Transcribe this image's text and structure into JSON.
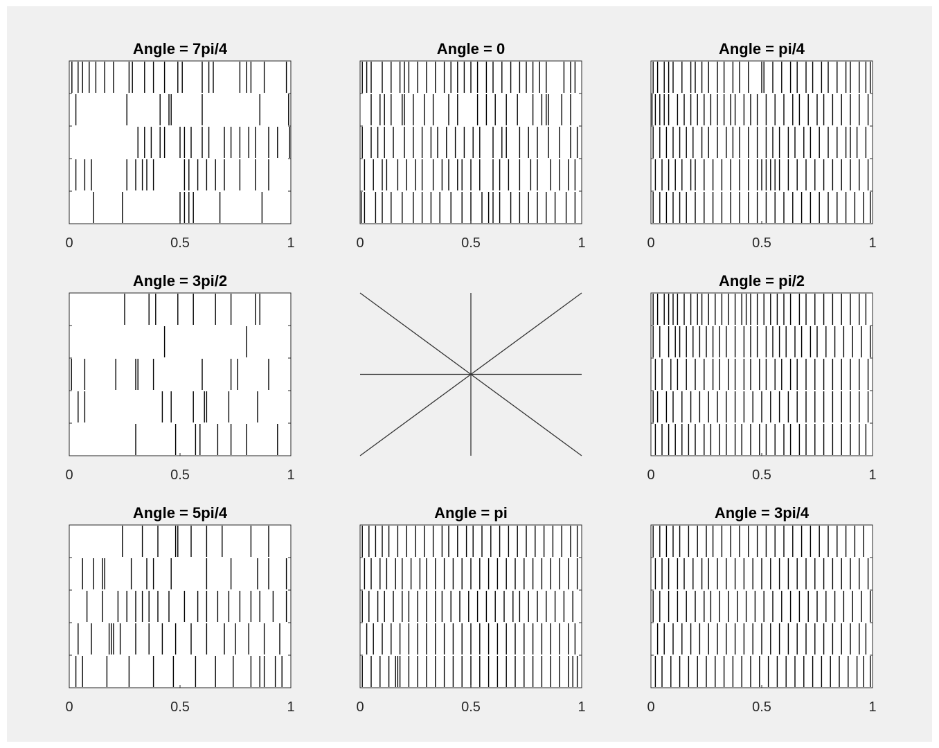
{
  "figure": {
    "background": "#f0f0f0",
    "axes_background": "#ffffff",
    "spike_color": "#000000"
  },
  "chart_data": [
    {
      "type": "raster",
      "title": "Angle = 7pi/4",
      "xlim": [
        0,
        1
      ],
      "xticks": [
        "0",
        "0.5",
        "1"
      ],
      "trials": [
        [
          0.012,
          0.04,
          0.06,
          0.09,
          0.12,
          0.16,
          0.2,
          0.27,
          0.285,
          0.34,
          0.38,
          0.43,
          0.49,
          0.51,
          0.6,
          0.63,
          0.65,
          0.77,
          0.8,
          0.82,
          0.88,
          0.98
        ],
        [
          0.03,
          0.26,
          0.41,
          0.45,
          0.46,
          0.6,
          0.86,
          0.99
        ],
        [
          0.31,
          0.34,
          0.37,
          0.41,
          0.43,
          0.5,
          0.52,
          0.55,
          0.6,
          0.63,
          0.7,
          0.73,
          0.77,
          0.81,
          0.84,
          0.9,
          0.94,
          0.995
        ],
        [
          0.03,
          0.07,
          0.1,
          0.26,
          0.3,
          0.33,
          0.35,
          0.38,
          0.52,
          0.54,
          0.58,
          0.62,
          0.66,
          0.7,
          0.77,
          0.84,
          0.9
        ],
        [
          0.11,
          0.24,
          0.5,
          0.52,
          0.54,
          0.56,
          0.68,
          0.87
        ]
      ]
    },
    {
      "type": "raster",
      "title": "Angle = 0",
      "xlim": [
        0,
        1
      ],
      "xticks": [
        "0",
        "0.5",
        "1"
      ],
      "trials": [
        [
          0.01,
          0.03,
          0.05,
          0.1,
          0.14,
          0.18,
          0.2,
          0.22,
          0.26,
          0.3,
          0.34,
          0.38,
          0.41,
          0.44,
          0.47,
          0.5,
          0.53,
          0.57,
          0.6,
          0.64,
          0.68,
          0.72,
          0.75,
          0.78,
          0.81,
          0.84,
          0.92,
          0.95,
          0.97
        ],
        [
          0.05,
          0.09,
          0.11,
          0.14,
          0.19,
          0.2,
          0.24,
          0.29,
          0.33,
          0.4,
          0.44,
          0.53,
          0.57,
          0.61,
          0.66,
          0.71,
          0.78,
          0.82,
          0.84,
          0.85,
          0.91,
          0.95
        ],
        [
          0.01,
          0.05,
          0.08,
          0.11,
          0.15,
          0.2,
          0.24,
          0.28,
          0.32,
          0.35,
          0.39,
          0.43,
          0.47,
          0.51,
          0.54,
          0.6,
          0.64,
          0.66,
          0.72,
          0.76,
          0.8,
          0.85,
          0.9,
          0.95,
          0.98
        ],
        [
          0.02,
          0.06,
          0.1,
          0.12,
          0.17,
          0.21,
          0.25,
          0.28,
          0.33,
          0.37,
          0.4,
          0.44,
          0.46,
          0.5,
          0.54,
          0.6,
          0.63,
          0.67,
          0.72,
          0.77,
          0.8,
          0.86,
          0.9,
          0.94,
          0.97
        ],
        [
          0.005,
          0.02,
          0.07,
          0.1,
          0.14,
          0.19,
          0.24,
          0.28,
          0.32,
          0.36,
          0.41,
          0.46,
          0.5,
          0.55,
          0.58,
          0.6,
          0.63,
          0.68,
          0.72,
          0.76,
          0.8,
          0.84,
          0.88,
          0.93,
          0.97
        ]
      ]
    },
    {
      "type": "raster",
      "title": "Angle = pi/4",
      "xlim": [
        0,
        1
      ],
      "xticks": [
        "0",
        "0.5",
        "1"
      ],
      "trials": [
        [
          0.01,
          0.03,
          0.06,
          0.08,
          0.1,
          0.14,
          0.18,
          0.2,
          0.23,
          0.26,
          0.3,
          0.33,
          0.37,
          0.4,
          0.44,
          0.5,
          0.51,
          0.55,
          0.59,
          0.63,
          0.66,
          0.7,
          0.73,
          0.77,
          0.8,
          0.84,
          0.88,
          0.9,
          0.94,
          0.97,
          0.99
        ],
        [
          0.005,
          0.02,
          0.04,
          0.06,
          0.08,
          0.12,
          0.15,
          0.18,
          0.21,
          0.24,
          0.27,
          0.3,
          0.33,
          0.36,
          0.38,
          0.42,
          0.45,
          0.48,
          0.52,
          0.56,
          0.6,
          0.64,
          0.67,
          0.71,
          0.75,
          0.78,
          0.82,
          0.86,
          0.9,
          0.94,
          0.98
        ],
        [
          0.01,
          0.04,
          0.07,
          0.1,
          0.13,
          0.16,
          0.19,
          0.23,
          0.26,
          0.3,
          0.34,
          0.37,
          0.4,
          0.44,
          0.48,
          0.52,
          0.55,
          0.58,
          0.62,
          0.65,
          0.69,
          0.72,
          0.76,
          0.8,
          0.84,
          0.88,
          0.9,
          0.93,
          0.97
        ],
        [
          0.02,
          0.05,
          0.08,
          0.11,
          0.14,
          0.18,
          0.2,
          0.24,
          0.28,
          0.32,
          0.36,
          0.4,
          0.44,
          0.48,
          0.5,
          0.52,
          0.54,
          0.56,
          0.58,
          0.62,
          0.66,
          0.7,
          0.74,
          0.78,
          0.82,
          0.86,
          0.9,
          0.94,
          0.98
        ],
        [
          0.01,
          0.04,
          0.07,
          0.1,
          0.13,
          0.16,
          0.2,
          0.24,
          0.28,
          0.32,
          0.36,
          0.4,
          0.44,
          0.48,
          0.52,
          0.56,
          0.6,
          0.64,
          0.68,
          0.72,
          0.76,
          0.8,
          0.84,
          0.88,
          0.92,
          0.96,
          0.99
        ]
      ]
    },
    {
      "type": "raster",
      "title": "Angle = 3pi/2",
      "xlim": [
        0,
        1
      ],
      "xticks": [
        "0",
        "0.5",
        "1"
      ],
      "trials": [
        [
          0.25,
          0.36,
          0.39,
          0.49,
          0.56,
          0.66,
          0.73,
          0.84,
          0.86
        ],
        [
          0.43,
          0.8
        ],
        [
          0.01,
          0.07,
          0.21,
          0.3,
          0.31,
          0.38,
          0.6,
          0.73,
          0.76,
          0.9
        ],
        [
          0.04,
          0.07,
          0.42,
          0.46,
          0.56,
          0.61,
          0.62,
          0.72,
          0.85
        ],
        [
          0.3,
          0.48,
          0.57,
          0.59,
          0.67,
          0.73,
          0.8,
          0.94
        ]
      ]
    },
    {
      "type": "lines",
      "title": "",
      "xlim": [
        -1,
        1
      ],
      "ylim": [
        -1,
        1
      ],
      "lines": [
        [
          -1,
          0,
          1,
          0
        ],
        [
          0,
          -1,
          0,
          1
        ],
        [
          -1,
          -1,
          1,
          1
        ],
        [
          -1,
          1,
          1,
          -1
        ]
      ]
    },
    {
      "type": "raster",
      "title": "Angle = pi/2",
      "xlim": [
        0,
        1
      ],
      "xticks": [
        "0",
        "0.5",
        "1"
      ],
      "trials": [
        [
          0.01,
          0.03,
          0.06,
          0.08,
          0.1,
          0.12,
          0.15,
          0.18,
          0.21,
          0.23,
          0.26,
          0.29,
          0.32,
          0.35,
          0.38,
          0.41,
          0.43,
          0.45,
          0.48,
          0.51,
          0.54,
          0.57,
          0.6,
          0.63,
          0.67,
          0.7,
          0.74,
          0.78,
          0.82,
          0.86,
          0.9,
          0.94,
          0.97
        ],
        [
          0.01,
          0.04,
          0.08,
          0.11,
          0.13,
          0.16,
          0.19,
          0.22,
          0.25,
          0.28,
          0.31,
          0.34,
          0.38,
          0.42,
          0.45,
          0.48,
          0.52,
          0.55,
          0.58,
          0.61,
          0.65,
          0.68,
          0.72,
          0.75,
          0.79,
          0.83,
          0.87,
          0.91,
          0.95,
          0.99
        ],
        [
          0.02,
          0.05,
          0.09,
          0.12,
          0.16,
          0.2,
          0.24,
          0.28,
          0.31,
          0.35,
          0.38,
          0.42,
          0.45,
          0.49,
          0.52,
          0.56,
          0.59,
          0.63,
          0.66,
          0.7,
          0.74,
          0.78,
          0.82,
          0.86,
          0.9,
          0.94,
          0.98
        ],
        [
          0.01,
          0.03,
          0.07,
          0.1,
          0.14,
          0.18,
          0.22,
          0.26,
          0.3,
          0.34,
          0.38,
          0.42,
          0.46,
          0.5,
          0.54,
          0.58,
          0.62,
          0.66,
          0.7,
          0.74,
          0.78,
          0.82,
          0.86,
          0.9,
          0.94,
          0.98
        ],
        [
          0.02,
          0.05,
          0.08,
          0.11,
          0.14,
          0.17,
          0.2,
          0.24,
          0.27,
          0.31,
          0.34,
          0.38,
          0.41,
          0.45,
          0.49,
          0.52,
          0.56,
          0.6,
          0.63,
          0.67,
          0.7,
          0.74,
          0.78,
          0.82,
          0.86,
          0.9,
          0.94,
          0.97
        ]
      ]
    },
    {
      "type": "raster",
      "title": "Angle = 5pi/4",
      "xlim": [
        0,
        1
      ],
      "xticks": [
        "0",
        "0.5",
        "1"
      ],
      "trials": [
        [
          0.24,
          0.33,
          0.4,
          0.48,
          0.49,
          0.55,
          0.62,
          0.69,
          0.82,
          0.9
        ],
        [
          0.06,
          0.11,
          0.15,
          0.16,
          0.28,
          0.35,
          0.38,
          0.46,
          0.62,
          0.73,
          0.85,
          0.9,
          0.98
        ],
        [
          0.08,
          0.15,
          0.22,
          0.26,
          0.3,
          0.33,
          0.36,
          0.4,
          0.45,
          0.52,
          0.58,
          0.62,
          0.67,
          0.72,
          0.77,
          0.82,
          0.86,
          0.92,
          0.98
        ],
        [
          0.04,
          0.1,
          0.18,
          0.19,
          0.2,
          0.23,
          0.3,
          0.36,
          0.42,
          0.48,
          0.55,
          0.62,
          0.7,
          0.75,
          0.81,
          0.88,
          0.95
        ],
        [
          0.03,
          0.06,
          0.17,
          0.27,
          0.38,
          0.47,
          0.57,
          0.66,
          0.74,
          0.82,
          0.86,
          0.88,
          0.93,
          0.96
        ]
      ]
    },
    {
      "type": "raster",
      "title": "Angle = pi",
      "xlim": [
        0,
        1
      ],
      "xticks": [
        "0",
        "0.5",
        "1"
      ],
      "trials": [
        [
          0.01,
          0.04,
          0.07,
          0.1,
          0.13,
          0.17,
          0.21,
          0.25,
          0.29,
          0.33,
          0.37,
          0.4,
          0.44,
          0.48,
          0.51,
          0.55,
          0.59,
          0.63,
          0.67,
          0.71,
          0.75,
          0.79,
          0.83,
          0.87,
          0.91,
          0.95,
          0.98
        ],
        [
          0.02,
          0.05,
          0.09,
          0.12,
          0.16,
          0.19,
          0.23,
          0.27,
          0.3,
          0.34,
          0.38,
          0.42,
          0.46,
          0.5,
          0.54,
          0.58,
          0.62,
          0.66,
          0.7,
          0.74,
          0.78,
          0.82,
          0.86,
          0.9,
          0.94,
          0.98
        ],
        [
          0.01,
          0.04,
          0.08,
          0.11,
          0.15,
          0.19,
          0.22,
          0.26,
          0.3,
          0.34,
          0.37,
          0.41,
          0.45,
          0.49,
          0.53,
          0.57,
          0.61,
          0.65,
          0.69,
          0.72,
          0.76,
          0.8,
          0.84,
          0.88,
          0.92,
          0.96
        ],
        [
          0.03,
          0.06,
          0.1,
          0.14,
          0.18,
          0.22,
          0.26,
          0.3,
          0.34,
          0.38,
          0.42,
          0.46,
          0.5,
          0.54,
          0.58,
          0.62,
          0.66,
          0.7,
          0.74,
          0.78,
          0.82,
          0.86,
          0.9,
          0.94,
          0.97
        ],
        [
          0.01,
          0.05,
          0.09,
          0.13,
          0.16,
          0.17,
          0.18,
          0.22,
          0.26,
          0.3,
          0.34,
          0.38,
          0.42,
          0.46,
          0.5,
          0.54,
          0.58,
          0.62,
          0.66,
          0.7,
          0.74,
          0.78,
          0.82,
          0.86,
          0.9,
          0.94,
          0.96,
          0.98
        ]
      ]
    },
    {
      "type": "raster",
      "title": "Angle = 3pi/4",
      "xlim": [
        0,
        1
      ],
      "xticks": [
        "0",
        "0.5",
        "1"
      ],
      "trials": [
        [
          0.01,
          0.04,
          0.07,
          0.1,
          0.13,
          0.17,
          0.21,
          0.25,
          0.28,
          0.32,
          0.36,
          0.4,
          0.44,
          0.48,
          0.52,
          0.56,
          0.6,
          0.64,
          0.68,
          0.72,
          0.76,
          0.8,
          0.84,
          0.88,
          0.92,
          0.96
        ],
        [
          0.02,
          0.05,
          0.08,
          0.12,
          0.15,
          0.19,
          0.23,
          0.26,
          0.3,
          0.34,
          0.38,
          0.42,
          0.46,
          0.5,
          0.54,
          0.58,
          0.62,
          0.66,
          0.7,
          0.74,
          0.78,
          0.82,
          0.86,
          0.9,
          0.94,
          0.98
        ],
        [
          0.01,
          0.04,
          0.08,
          0.12,
          0.16,
          0.2,
          0.24,
          0.27,
          0.31,
          0.35,
          0.39,
          0.43,
          0.47,
          0.51,
          0.55,
          0.59,
          0.63,
          0.67,
          0.71,
          0.75,
          0.79,
          0.83,
          0.87,
          0.91,
          0.95,
          0.99
        ],
        [
          0.03,
          0.06,
          0.1,
          0.14,
          0.18,
          0.22,
          0.26,
          0.3,
          0.34,
          0.38,
          0.42,
          0.46,
          0.5,
          0.54,
          0.58,
          0.62,
          0.66,
          0.7,
          0.74,
          0.78,
          0.82,
          0.86,
          0.9,
          0.94,
          0.97
        ],
        [
          0.02,
          0.05,
          0.09,
          0.13,
          0.17,
          0.21,
          0.25,
          0.29,
          0.33,
          0.37,
          0.41,
          0.45,
          0.49,
          0.53,
          0.57,
          0.61,
          0.65,
          0.69,
          0.73,
          0.77,
          0.81,
          0.85,
          0.89,
          0.93,
          0.96,
          0.99
        ]
      ]
    }
  ]
}
